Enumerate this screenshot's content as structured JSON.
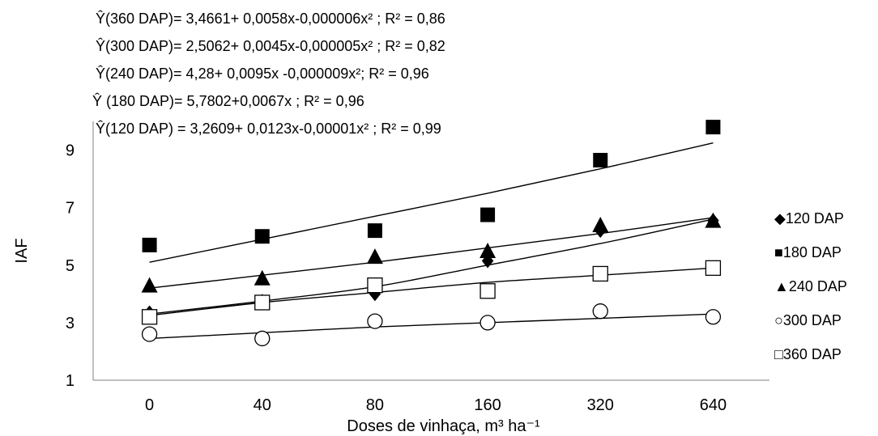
{
  "chart_data": {
    "type": "scatter",
    "xlabel": "Doses de vinhaça, m³ ha⁻¹",
    "ylabel": "IAF",
    "categories": [
      "0",
      "40",
      "80",
      "160",
      "320",
      "640"
    ],
    "ylim": [
      1,
      10
    ],
    "yticks": [
      1,
      3,
      5,
      7,
      9
    ],
    "grid": false,
    "legend_position": "right",
    "equations": [
      "Ŷ(360 DAP)= 3,4661+ 0,0058x-0,000006x² ; R² = 0,86",
      "Ŷ(300 DAP)= 2,5062+ 0,0045x-0,000005x² ; R² = 0,82",
      "Ŷ(240 DAP)= 4,28+ 0,0095x -0,000009x²; R² = 0,96",
      "Ŷ (180 DAP)= 5,7802+0,0067x ; R² = 0,96",
      "Ŷ(120 DAP) = 3,2609+ 0,0123x-0,00001x²  ; R² = 0,99"
    ],
    "series": [
      {
        "name": "◆120 DAP",
        "marker": "diamond-filled",
        "values": [
          3.35,
          3.75,
          4.0,
          5.15,
          6.2,
          6.55
        ],
        "trend": [
          3.3,
          3.75,
          4.25,
          5.0,
          5.75,
          6.6
        ]
      },
      {
        "name": "■180 DAP",
        "marker": "square-filled",
        "values": [
          5.7,
          6.0,
          6.2,
          6.75,
          8.65,
          9.8
        ],
        "trend": [
          5.1,
          5.9,
          6.7,
          7.5,
          8.35,
          9.25
        ]
      },
      {
        "name": "▲240 DAP",
        "marker": "triangle-filled",
        "values": [
          4.3,
          4.55,
          5.3,
          5.5,
          6.4,
          6.55
        ],
        "trend": [
          4.2,
          4.65,
          5.1,
          5.6,
          6.1,
          6.65
        ]
      },
      {
        "name": "○300 DAP",
        "marker": "circle-open",
        "values": [
          2.6,
          2.45,
          3.05,
          3.0,
          3.4,
          3.2
        ],
        "trend": [
          2.45,
          2.65,
          2.85,
          3.0,
          3.15,
          3.3
        ]
      },
      {
        "name": "□360 DAP",
        "marker": "square-open",
        "values": [
          3.2,
          3.7,
          4.3,
          4.1,
          4.7,
          4.9
        ],
        "trend": [
          3.25,
          3.7,
          4.05,
          4.4,
          4.65,
          4.9
        ]
      }
    ]
  }
}
